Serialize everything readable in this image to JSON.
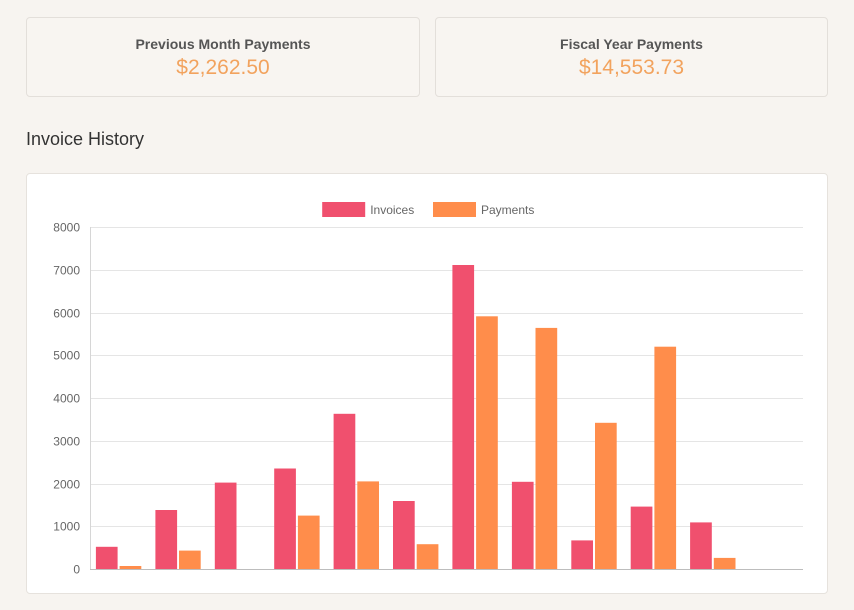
{
  "stats": {
    "previous_month": {
      "label": "Previous Month Payments",
      "value": "$2,262.50"
    },
    "fiscal_year": {
      "label": "Fiscal Year Payments",
      "value": "$14,553.73"
    }
  },
  "section": {
    "title": "Invoice History"
  },
  "colors": {
    "invoices": "#f0506e",
    "payments": "#ff8d4b",
    "grid": "#e5e5e5"
  },
  "chart_data": {
    "type": "bar",
    "categories": [
      "",
      "",
      "",
      "",
      "",
      "",
      "",
      "",
      "",
      "",
      "",
      ""
    ],
    "series": [
      {
        "name": "Invoices",
        "values": [
          520,
          1380,
          2020,
          2350,
          3630,
          1590,
          7110,
          2040,
          670,
          1460,
          1090,
          0
        ]
      },
      {
        "name": "Payments",
        "values": [
          70,
          430,
          0,
          1250,
          2050,
          580,
          5910,
          5640,
          3420,
          5200,
          260,
          0
        ]
      }
    ],
    "ylim": [
      0,
      8000
    ],
    "yticks": [
      0,
      1000,
      2000,
      3000,
      4000,
      5000,
      6000,
      7000,
      8000
    ],
    "grid": true,
    "legend": "top-center"
  }
}
